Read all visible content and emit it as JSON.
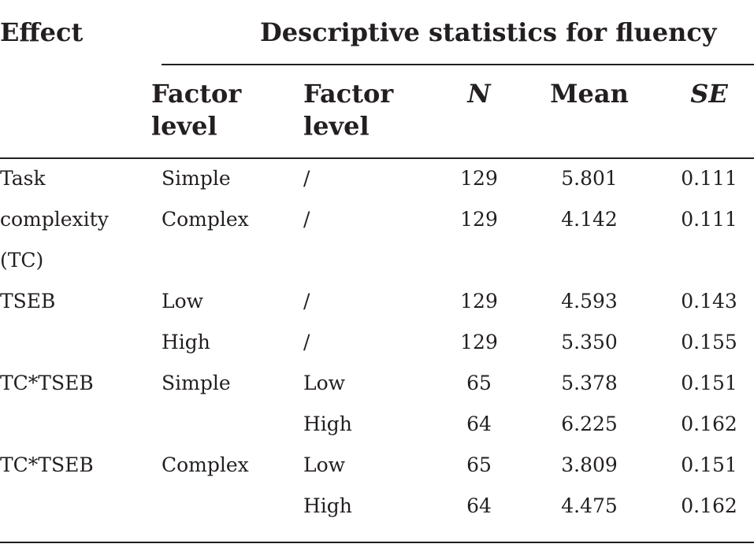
{
  "header": {
    "effect": "Effect",
    "group_title": "Descriptive statistics for fluency",
    "col_factor1_line1": "Factor",
    "col_factor1_line2": "level",
    "col_factor2_line1": "Factor",
    "col_factor2_line2": "level",
    "col_n": "N",
    "col_mean": "Mean",
    "col_se": "SE"
  },
  "rows": [
    {
      "effect": "Task",
      "factor1": "Simple",
      "factor2": "/",
      "n": "129",
      "mean": "5.801",
      "se": "0.111"
    },
    {
      "effect": "complexity",
      "factor1": "Complex",
      "factor2": "/",
      "n": "129",
      "mean": "4.142",
      "se": "0.111"
    },
    {
      "effect": "(TC)",
      "factor1": "",
      "factor2": "",
      "n": "",
      "mean": "",
      "se": ""
    },
    {
      "effect": "TSEB",
      "factor1": "Low",
      "factor2": "/",
      "n": "129",
      "mean": "4.593",
      "se": "0.143"
    },
    {
      "effect": "",
      "factor1": "High",
      "factor2": "/",
      "n": "129",
      "mean": "5.350",
      "se": "0.155"
    },
    {
      "effect": "TC*TSEB",
      "factor1": "Simple",
      "factor2": "Low",
      "n": "65",
      "mean": "5.378",
      "se": "0.151"
    },
    {
      "effect": "",
      "factor1": "",
      "factor2": "High",
      "n": "64",
      "mean": "6.225",
      "se": "0.162"
    },
    {
      "effect": "TC*TSEB",
      "factor1": "Complex",
      "factor2": "Low",
      "n": "65",
      "mean": "3.809",
      "se": "0.151"
    },
    {
      "effect": "",
      "factor1": "",
      "factor2": "High",
      "n": "64",
      "mean": "4.475",
      "se": "0.162"
    }
  ]
}
